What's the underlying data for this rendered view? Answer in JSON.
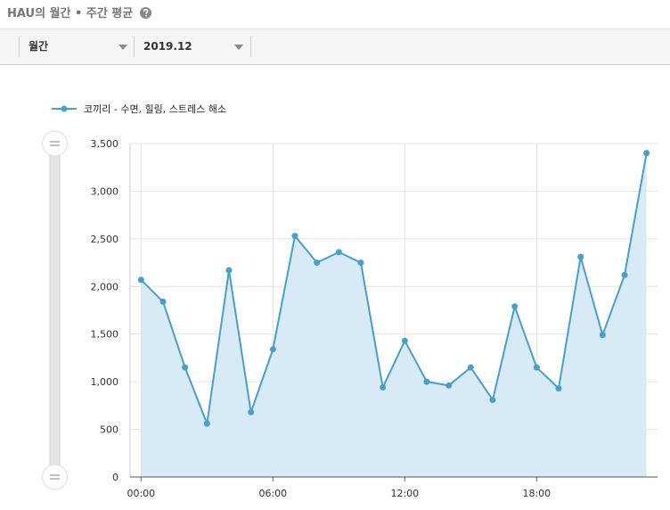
{
  "header": {
    "title": "HAU의 월간 • 주간 평균"
  },
  "toolbar": {
    "period": "월간",
    "month": "2019.12"
  },
  "chart_data": {
    "type": "line",
    "area": true,
    "x": [
      0,
      1,
      2,
      3,
      4,
      5,
      6,
      7,
      8,
      9,
      10,
      11,
      12,
      13,
      14,
      15,
      16,
      17,
      18,
      19,
      20,
      21,
      22,
      23
    ],
    "series": [
      {
        "name": "코끼리 - 수면, 힐링, 스트레스 해소",
        "color": "#4a9fc8",
        "fill": "#d8eaf5",
        "values": [
          2070,
          1840,
          1150,
          560,
          2170,
          680,
          1340,
          2530,
          2250,
          2360,
          2250,
          940,
          1430,
          1000,
          960,
          1150,
          810,
          1790,
          1150,
          930,
          2310,
          1490,
          2120,
          3400
        ]
      }
    ],
    "xlim": [
      -0.5,
      23.5
    ],
    "xticks": [
      {
        "value": 0,
        "label": "00:00"
      },
      {
        "value": 6,
        "label": "06:00"
      },
      {
        "value": 12,
        "label": "12:00"
      },
      {
        "value": 18,
        "label": "18:00"
      }
    ],
    "ylim": [
      0,
      3500
    ],
    "yticks": [
      0,
      500,
      {
        "value": 1000,
        "label": "1,000"
      },
      {
        "value": 1500,
        "label": "1,500"
      },
      {
        "value": 2000,
        "label": "2,000"
      },
      {
        "value": 2500,
        "label": "2,500"
      },
      {
        "value": 3000,
        "label": "3,000"
      },
      {
        "value": 3500,
        "label": "3,500"
      }
    ],
    "grid": true
  }
}
